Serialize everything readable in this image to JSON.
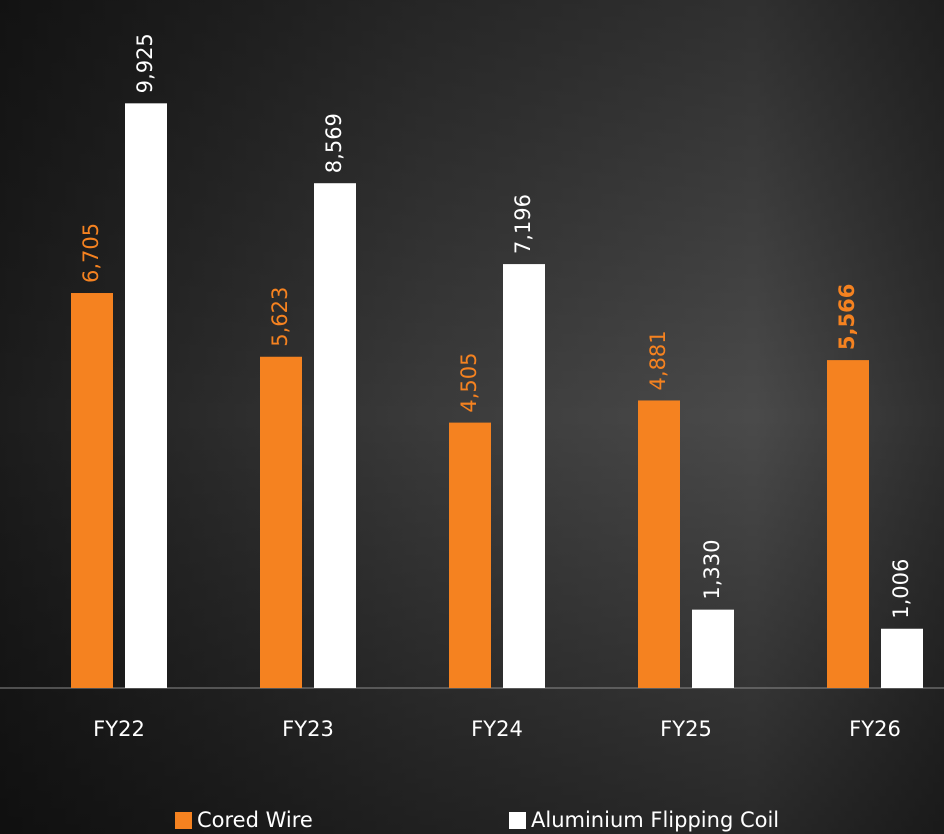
{
  "chart_data": {
    "type": "bar",
    "categories": [
      "FY22",
      "FY23",
      "FY24",
      "FY25",
      "FY26"
    ],
    "series": [
      {
        "name": "Cored Wire",
        "color": "#f58220",
        "values": [
          6705,
          5623,
          4505,
          4881,
          5566
        ],
        "value_labels": [
          "6,705",
          "5,623",
          "4,505",
          "4,881",
          "5,566"
        ]
      },
      {
        "name": "Aluminium Flipping Coil",
        "color": "#ffffff",
        "values": [
          9925,
          8569,
          7196,
          1330,
          1006
        ],
        "value_labels": [
          "9,925",
          "8,569",
          "7,196",
          "1,330",
          "1,006"
        ]
      }
    ],
    "ylim": [
      0,
      11000
    ]
  }
}
